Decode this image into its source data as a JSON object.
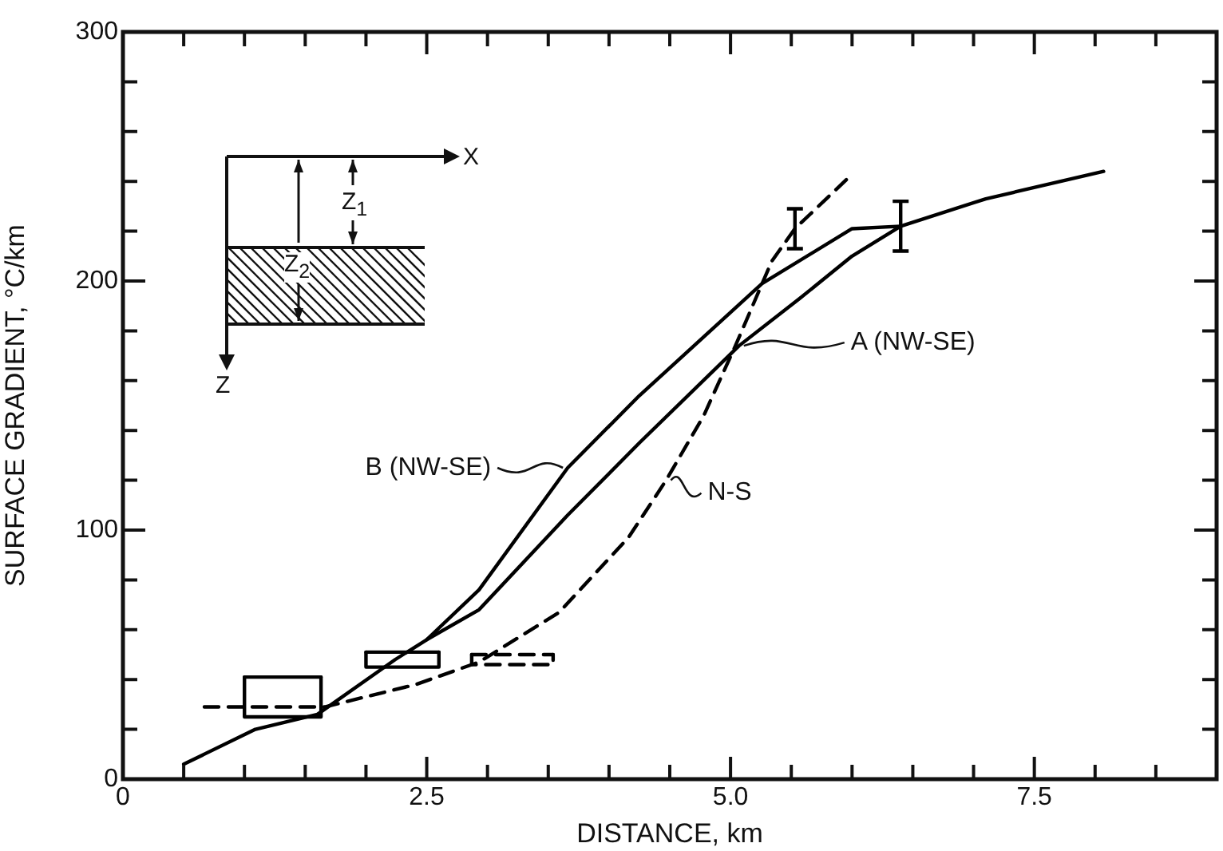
{
  "chart_data": {
    "type": "line",
    "xlabel": "DISTANCE, km",
    "ylabel": "SURFACE GRADIENT, °C/km",
    "xlim": [
      0,
      9
    ],
    "ylim": [
      0,
      300
    ],
    "marker": "none",
    "xticks": [
      0,
      {
        "value": 0.5,
        "label": null
      },
      {
        "value": 1,
        "label": null
      },
      {
        "value": 1.5,
        "label": null
      },
      {
        "value": 2,
        "label": null
      },
      2.5,
      {
        "value": 3,
        "label": null
      },
      {
        "value": 3.5,
        "label": null
      },
      {
        "value": 4,
        "label": null
      },
      {
        "value": 4.5,
        "label": null
      },
      {
        "value": 5,
        "label": "5.0"
      },
      {
        "value": 5.5,
        "label": null
      },
      {
        "value": 6,
        "label": null
      },
      {
        "value": 6.5,
        "label": null
      },
      {
        "value": 7,
        "label": null
      },
      7.5,
      {
        "value": 8,
        "label": null
      },
      {
        "value": 8.5,
        "label": null
      }
    ],
    "yticks": [
      0,
      {
        "value": 20,
        "label": null
      },
      {
        "value": 40,
        "label": null
      },
      {
        "value": 60,
        "label": null
      },
      {
        "value": 80,
        "label": null
      },
      100,
      {
        "value": 120,
        "label": null
      },
      {
        "value": 140,
        "label": null
      },
      {
        "value": 160,
        "label": null
      },
      {
        "value": 180,
        "label": null
      },
      200,
      {
        "value": 220,
        "label": null
      },
      {
        "value": 240,
        "label": null
      },
      {
        "value": 260,
        "label": null
      },
      {
        "value": 280,
        "label": null
      },
      300
    ],
    "annotations": [
      "X",
      "Z",
      "Z$_{1}$",
      "Z$_{2}$"
    ],
    "series": [
      {
        "name": "A (NW-SE)",
        "color": "#000000",
        "line_style": "solid",
        "x": [
          0.5,
          1.09,
          1.6,
          2.24,
          2.5,
          2.93,
          3.66,
          4.25,
          5.07,
          5.57,
          6.0,
          6.4,
          7.1,
          8.07
        ],
        "values": [
          6,
          20,
          26,
          48,
          56,
          68,
          106,
          135,
          174,
          193,
          210,
          222,
          233,
          244
        ],
        "errors": [
          null,
          null,
          null,
          null,
          null,
          null,
          null,
          null,
          null,
          null,
          null,
          10,
          null,
          null
        ]
      },
      {
        "name": "B (NW-SE)",
        "color": "#000000",
        "line_style": "solid",
        "x": [
          2.5,
          2.93,
          3.66,
          4.25,
          5.26,
          6.0,
          6.4
        ],
        "values": [
          56,
          76,
          125,
          154,
          199,
          221,
          222
        ]
      },
      {
        "name": "N-S",
        "color": "#000000",
        "line_style": "dashed",
        "x": [
          0.67,
          1.66,
          2.41,
          2.93,
          3.59,
          4.16,
          4.47,
          4.78,
          5.04,
          5.34,
          5.53,
          5.96
        ],
        "values": [
          29,
          29,
          38,
          47,
          67,
          97,
          120,
          146,
          174,
          208,
          221,
          241
        ],
        "errors": [
          null,
          null,
          null,
          null,
          null,
          null,
          null,
          null,
          null,
          null,
          8,
          null
        ]
      },
      {
        "color": "#000000",
        "line_style": "solid",
        "x": [
          1.0,
          1.0,
          1.63,
          1.63
        ],
        "values": [
          41,
          25,
          25,
          41
        ]
      },
      {
        "color": "#000000",
        "line_style": "solid",
        "x": [
          1.0,
          1.63
        ],
        "values": [
          41,
          41
        ]
      },
      {
        "color": "#000000",
        "line_style": "solid",
        "x": [
          2.0,
          2.0,
          2.6,
          2.6
        ],
        "values": [
          51,
          45,
          45,
          51
        ]
      },
      {
        "color": "#000000",
        "line_style": "solid",
        "x": [
          2.0,
          2.6
        ],
        "values": [
          51,
          51
        ]
      },
      {
        "color": "#000000",
        "line_style": "dashed",
        "x": [
          2.87,
          2.87,
          3.54,
          3.54
        ],
        "values": [
          50,
          46,
          46,
          50
        ]
      },
      {
        "color": "#000000",
        "line_style": "dashed",
        "x": [
          2.87,
          3.54
        ],
        "values": [
          50,
          50
        ]
      }
    ]
  }
}
